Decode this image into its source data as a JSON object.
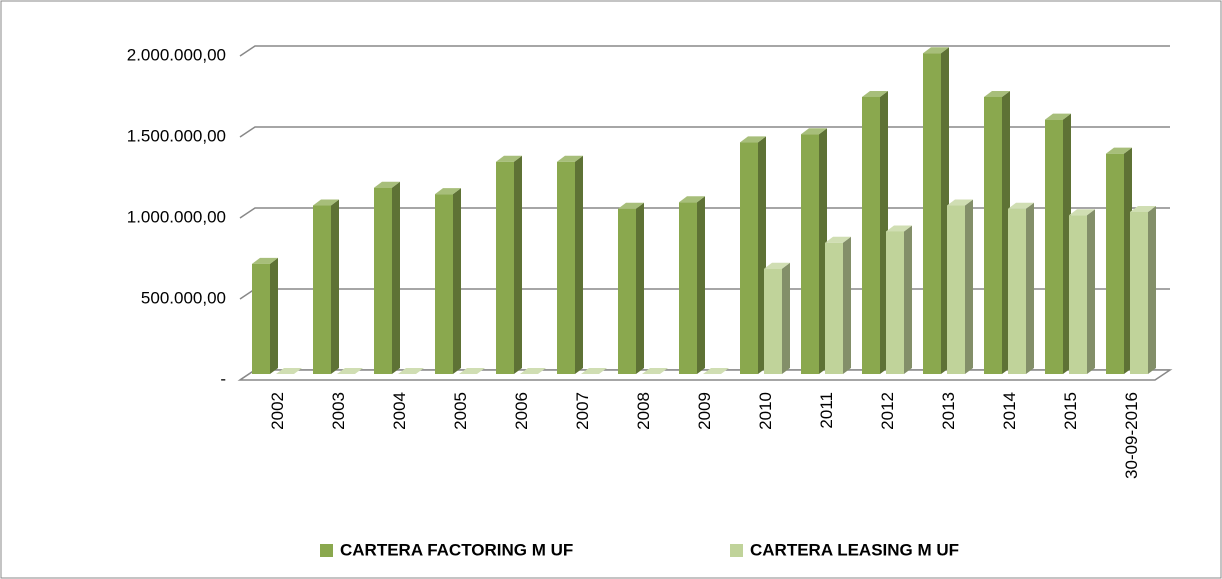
{
  "chart_data": {
    "type": "bar3d",
    "categories": [
      "2002",
      "2003",
      "2004",
      "2005",
      "2006",
      "2007",
      "2008",
      "2009",
      "2010",
      "2011",
      "2012",
      "2013",
      "2014",
      "2015",
      "30-09-2016"
    ],
    "series": [
      {
        "name": "CARTERA FACTORING M UF",
        "color": "#8aa84e",
        "values": [
          680000,
          1040000,
          1150000,
          1110000,
          1310000,
          1310000,
          1020000,
          1060000,
          1430000,
          1480000,
          1710000,
          1980000,
          1710000,
          1570000,
          1360000
        ]
      },
      {
        "name": "CARTERA LEASING M UF",
        "color": "#c0d39a",
        "values": [
          0,
          0,
          0,
          0,
          0,
          0,
          0,
          0,
          650000,
          810000,
          880000,
          1040000,
          1020000,
          980000,
          1000000
        ]
      }
    ],
    "ylim": [
      0,
      2000000
    ],
    "yticks": [
      {
        "value": 0,
        "label": "-"
      },
      {
        "value": 500000,
        "label": "500.000,00"
      },
      {
        "value": 1000000,
        "label": "1.000.000,00"
      },
      {
        "value": 1500000,
        "label": "1.500.000,00"
      },
      {
        "value": 2000000,
        "label": "2.000.000,00"
      }
    ],
    "grid": true,
    "legend": "bottom"
  }
}
